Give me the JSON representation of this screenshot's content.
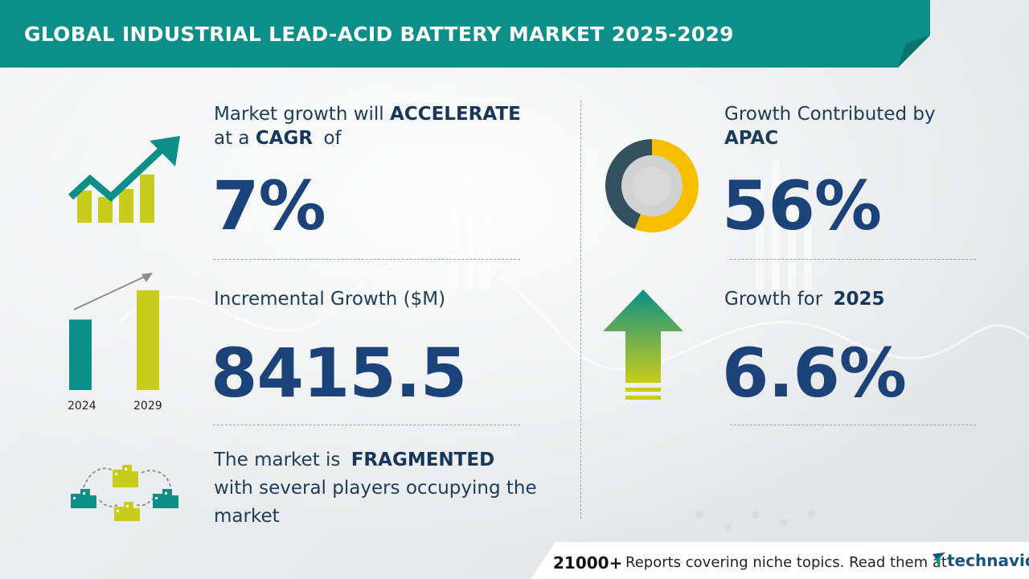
{
  "header": {
    "title": "GLOBAL INDUSTRIAL LEAD-ACID BATTERY MARKET 2025-2029"
  },
  "cagr": {
    "line1_prefix": "Market growth will",
    "line1_emph": "ACCELERATE",
    "line2_prefix": "at a",
    "line2_emph": "CAGR",
    "line2_suffix": "of",
    "value": "7%",
    "icon": "trend-up-chart-icon"
  },
  "incremental": {
    "label": "Incremental Growth ($M)",
    "value": "8415.5",
    "bar_years": [
      "2024",
      "2029"
    ],
    "bar_values": [
      0.6,
      0.85
    ],
    "icon": "bar-growth-icon"
  },
  "market": {
    "prefix": "The market is",
    "emph": "FRAGMENTED",
    "line2": "with several players occupying the",
    "line3": "market",
    "icon": "buildings-network-icon"
  },
  "apac": {
    "line1": "Growth Contributed by",
    "region": "APAC",
    "value": "56%",
    "donut_share": 0.56,
    "icon": "donut-chart-icon"
  },
  "yoy": {
    "prefix": "Growth for",
    "year": "2025",
    "value": "6.6%",
    "icon": "up-arrow-icon"
  },
  "footer": {
    "count": "21000+",
    "text": "Reports covering niche topics. Read them at",
    "brand": "technavio"
  },
  "colors": {
    "teal": "#0b8f88",
    "yellow_green": "#c8cc1a",
    "navy": "#1b4279",
    "gold": "#f5bf00",
    "slate": "#33505f"
  }
}
